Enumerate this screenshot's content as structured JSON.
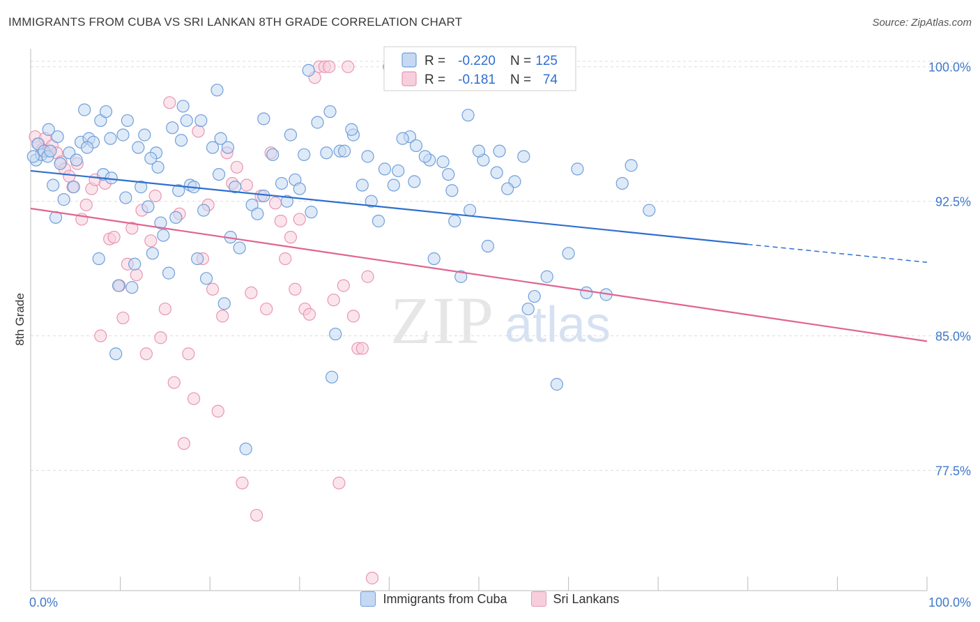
{
  "header": {
    "title": "IMMIGRANTS FROM CUBA VS SRI LANKAN 8TH GRADE CORRELATION CHART",
    "source": "Source: ZipAtlas.com"
  },
  "watermark": {
    "zip": "ZIP",
    "atlas": "atlas"
  },
  "colors": {
    "blue_fill": "#c5d9f3",
    "blue_stroke": "#6f9fda",
    "blue_line": "#2e6fd0",
    "pink_fill": "#f7cfdc",
    "pink_stroke": "#e896b2",
    "pink_line": "#e0648f",
    "tick_label": "#3f78cc",
    "grid": "#dcdcdc"
  },
  "legend_top": {
    "rows": [
      {
        "r_label": "R =",
        "r_value": "-0.220",
        "n_label": "N =",
        "n_value": "125"
      },
      {
        "r_label": "R =",
        "r_value": "-0.181",
        "n_label": "N =",
        "n_value": "74"
      }
    ]
  },
  "legend_bottom": [
    {
      "label": "Immigrants from Cuba"
    },
    {
      "label": "Sri Lankans"
    }
  ],
  "chart_data": {
    "type": "scatter",
    "title": "IMMIGRANTS FROM CUBA VS SRI LANKAN 8TH GRADE CORRELATION CHART",
    "xlabel": "",
    "ylabel": "8th Grade",
    "xlim": [
      0,
      100
    ],
    "ylim": [
      70.8,
      101.0
    ],
    "x_tick_labels": [
      "0.0%",
      "100.0%"
    ],
    "y_ticks": [
      77.5,
      85.0,
      92.5,
      100.0
    ],
    "y_tick_labels": [
      "77.5%",
      "85.0%",
      "92.5%",
      "100.0%"
    ],
    "grid": true,
    "legend_position": "top-center",
    "series": [
      {
        "name": "Immigrants from Cuba",
        "R": -0.22,
        "N": 125,
        "trend": {
          "x0": 0,
          "y0": 94.2,
          "x1": 80,
          "y1": 90.1,
          "dashed_to_x": 100,
          "dashed_to_y": 89.1
        },
        "points": [
          [
            0.6,
            94.8
          ],
          [
            0.8,
            95.7
          ],
          [
            1.2,
            95.1
          ],
          [
            1.5,
            95.3
          ],
          [
            1.9,
            95.0
          ],
          [
            2.2,
            95.3
          ],
          [
            2.5,
            93.4
          ],
          [
            2.8,
            91.6
          ],
          [
            3.3,
            94.6
          ],
          [
            3.7,
            92.6
          ],
          [
            4.3,
            95.2
          ],
          [
            4.8,
            93.3
          ],
          [
            5.1,
            94.8
          ],
          [
            5.6,
            95.8
          ],
          [
            6.0,
            97.6
          ],
          [
            6.5,
            96.0
          ],
          [
            7.0,
            95.8
          ],
          [
            7.6,
            89.3
          ],
          [
            7.8,
            97.0
          ],
          [
            8.1,
            94.0
          ],
          [
            8.4,
            97.5
          ],
          [
            8.9,
            96.0
          ],
          [
            9.5,
            84.0
          ],
          [
            9.8,
            87.8
          ],
          [
            10.3,
            96.2
          ],
          [
            10.6,
            92.7
          ],
          [
            10.8,
            97.0
          ],
          [
            11.3,
            87.7
          ],
          [
            11.6,
            89.0
          ],
          [
            12.0,
            95.5
          ],
          [
            12.3,
            93.3
          ],
          [
            12.7,
            96.2
          ],
          [
            13.1,
            92.2
          ],
          [
            13.6,
            89.6
          ],
          [
            14.0,
            95.2
          ],
          [
            14.2,
            94.4
          ],
          [
            14.5,
            91.3
          ],
          [
            14.8,
            90.6
          ],
          [
            15.4,
            88.5
          ],
          [
            15.8,
            96.6
          ],
          [
            16.2,
            91.6
          ],
          [
            16.5,
            93.1
          ],
          [
            17.0,
            97.8
          ],
          [
            17.4,
            97.0
          ],
          [
            17.8,
            93.4
          ],
          [
            18.2,
            93.3
          ],
          [
            18.6,
            89.3
          ],
          [
            19.0,
            97.0
          ],
          [
            19.3,
            92.0
          ],
          [
            19.6,
            88.2
          ],
          [
            20.3,
            95.5
          ],
          [
            20.8,
            98.7
          ],
          [
            21.2,
            96.0
          ],
          [
            21.6,
            86.8
          ],
          [
            22.0,
            95.5
          ],
          [
            22.3,
            90.5
          ],
          [
            22.8,
            93.3
          ],
          [
            23.3,
            89.9
          ],
          [
            24.0,
            78.7
          ],
          [
            24.7,
            92.3
          ],
          [
            25.3,
            91.8
          ],
          [
            26.0,
            97.1
          ],
          [
            27.0,
            95.1
          ],
          [
            28.0,
            93.5
          ],
          [
            28.6,
            92.5
          ],
          [
            29.0,
            96.2
          ],
          [
            29.5,
            93.7
          ],
          [
            30.0,
            93.2
          ],
          [
            30.5,
            95.1
          ],
          [
            31.3,
            91.9
          ],
          [
            32.0,
            96.9
          ],
          [
            33.0,
            95.2
          ],
          [
            33.6,
            82.7
          ],
          [
            34.0,
            85.1
          ],
          [
            34.5,
            95.3
          ],
          [
            35.0,
            95.3
          ],
          [
            36.0,
            96.2
          ],
          [
            37.0,
            93.4
          ],
          [
            38.0,
            92.5
          ],
          [
            38.8,
            91.4
          ],
          [
            39.5,
            94.3
          ],
          [
            40.5,
            93.4
          ],
          [
            41.0,
            94.2
          ],
          [
            42.3,
            96.1
          ],
          [
            42.8,
            93.6
          ],
          [
            44.5,
            94.8
          ],
          [
            45.0,
            89.3
          ],
          [
            46.0,
            94.7
          ],
          [
            47.0,
            93.1
          ],
          [
            47.3,
            91.4
          ],
          [
            48.0,
            88.3
          ],
          [
            49.0,
            92.0
          ],
          [
            50.5,
            94.8
          ],
          [
            51.0,
            90.0
          ],
          [
            52.3,
            95.3
          ],
          [
            54.0,
            93.6
          ],
          [
            55.5,
            86.5
          ],
          [
            56.2,
            87.2
          ],
          [
            57.6,
            88.3
          ],
          [
            58.7,
            82.3
          ],
          [
            60.0,
            89.6
          ],
          [
            61.0,
            94.3
          ],
          [
            62.0,
            87.4
          ],
          [
            64.2,
            87.3
          ],
          [
            66.0,
            93.5
          ],
          [
            67.0,
            94.5
          ],
          [
            69.0,
            92.0
          ],
          [
            0.3,
            95.0
          ],
          [
            3.0,
            96.1
          ],
          [
            6.3,
            95.5
          ],
          [
            2.0,
            96.5
          ],
          [
            9.0,
            93.8
          ],
          [
            13.4,
            94.9
          ],
          [
            16.8,
            95.9
          ],
          [
            21.0,
            94.0
          ],
          [
            26.0,
            92.8
          ],
          [
            31.0,
            99.8
          ],
          [
            33.4,
            97.5
          ],
          [
            35.8,
            96.5
          ],
          [
            37.6,
            95.0
          ],
          [
            40.0,
            100.0
          ],
          [
            41.5,
            96.0
          ],
          [
            43.0,
            95.6
          ],
          [
            44.0,
            95.0
          ],
          [
            46.6,
            94.0
          ],
          [
            48.8,
            97.3
          ],
          [
            50.0,
            95.3
          ],
          [
            52.0,
            94.1
          ],
          [
            53.2,
            93.2
          ],
          [
            55.0,
            95.0
          ]
        ]
      },
      {
        "name": "Sri Lankans",
        "R": -0.181,
        "N": 74,
        "trend": {
          "x0": 0,
          "y0": 92.1,
          "x1": 100,
          "y1": 84.7
        },
        "points": [
          [
            0.5,
            96.1
          ],
          [
            0.9,
            95.7
          ],
          [
            1.3,
            95.4
          ],
          [
            1.6,
            96.0
          ],
          [
            2.0,
            95.3
          ],
          [
            2.4,
            95.6
          ],
          [
            2.9,
            95.2
          ],
          [
            3.4,
            94.7
          ],
          [
            3.8,
            94.3
          ],
          [
            4.3,
            93.9
          ],
          [
            4.7,
            93.3
          ],
          [
            5.2,
            94.6
          ],
          [
            5.7,
            91.5
          ],
          [
            6.2,
            92.3
          ],
          [
            6.8,
            93.2
          ],
          [
            7.2,
            93.7
          ],
          [
            7.8,
            85.0
          ],
          [
            8.3,
            93.5
          ],
          [
            8.8,
            90.4
          ],
          [
            9.3,
            90.5
          ],
          [
            9.9,
            87.8
          ],
          [
            10.3,
            86.0
          ],
          [
            10.8,
            89.0
          ],
          [
            11.3,
            91.0
          ],
          [
            11.8,
            88.4
          ],
          [
            12.4,
            92.0
          ],
          [
            12.9,
            84.0
          ],
          [
            13.4,
            90.3
          ],
          [
            13.9,
            92.8
          ],
          [
            14.5,
            84.9
          ],
          [
            15.0,
            86.5
          ],
          [
            15.5,
            98.0
          ],
          [
            16.0,
            82.4
          ],
          [
            16.6,
            91.8
          ],
          [
            17.1,
            79.0
          ],
          [
            17.6,
            84.0
          ],
          [
            18.2,
            81.5
          ],
          [
            18.7,
            96.4
          ],
          [
            19.2,
            89.3
          ],
          [
            19.8,
            92.3
          ],
          [
            20.3,
            87.6
          ],
          [
            20.9,
            80.8
          ],
          [
            21.4,
            86.1
          ],
          [
            21.9,
            95.2
          ],
          [
            22.5,
            93.5
          ],
          [
            23.0,
            94.4
          ],
          [
            23.6,
            76.8
          ],
          [
            24.1,
            93.4
          ],
          [
            24.6,
            87.4
          ],
          [
            25.2,
            75.0
          ],
          [
            25.7,
            92.8
          ],
          [
            26.3,
            86.5
          ],
          [
            26.8,
            95.2
          ],
          [
            27.3,
            92.4
          ],
          [
            27.9,
            91.4
          ],
          [
            28.4,
            89.3
          ],
          [
            29.0,
            90.5
          ],
          [
            29.5,
            87.6
          ],
          [
            30.0,
            91.5
          ],
          [
            30.6,
            86.5
          ],
          [
            31.1,
            86.2
          ],
          [
            31.7,
            99.4
          ],
          [
            32.2,
            100.0
          ],
          [
            32.8,
            100.0
          ],
          [
            33.3,
            100.0
          ],
          [
            33.8,
            87.0
          ],
          [
            34.4,
            76.8
          ],
          [
            34.9,
            87.8
          ],
          [
            35.4,
            100.0
          ],
          [
            36.0,
            86.1
          ],
          [
            36.5,
            84.3
          ],
          [
            37.0,
            84.3
          ],
          [
            37.6,
            88.3
          ],
          [
            38.1,
            71.5
          ]
        ]
      }
    ]
  }
}
